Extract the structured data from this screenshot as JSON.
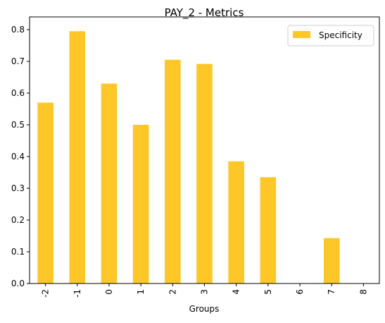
{
  "chart_data": {
    "type": "bar",
    "title": "PAY_2 - Metrics",
    "xlabel": "Groups",
    "ylabel": "",
    "categories": [
      "-2",
      "-1",
      "0",
      "1",
      "2",
      "3",
      "4",
      "5",
      "6",
      "7",
      "8"
    ],
    "series": [
      {
        "name": "Specificity",
        "values": [
          0.57,
          0.795,
          0.63,
          0.5,
          0.705,
          0.692,
          0.385,
          0.335,
          0.0,
          0.143,
          0.0
        ]
      }
    ],
    "ylim": [
      0,
      0.84
    ],
    "yticks": [
      "0.0",
      "0.1",
      "0.2",
      "0.3",
      "0.4",
      "0.5",
      "0.6",
      "0.7",
      "0.8"
    ],
    "ytick_values": [
      0,
      0.1,
      0.2,
      0.3,
      0.4,
      0.5,
      0.6,
      0.7,
      0.8
    ],
    "grid": false,
    "legend_position": "top-right",
    "colors": {
      "bar": "#fdc827",
      "axis": "#000000",
      "background": "#ffffff"
    }
  }
}
